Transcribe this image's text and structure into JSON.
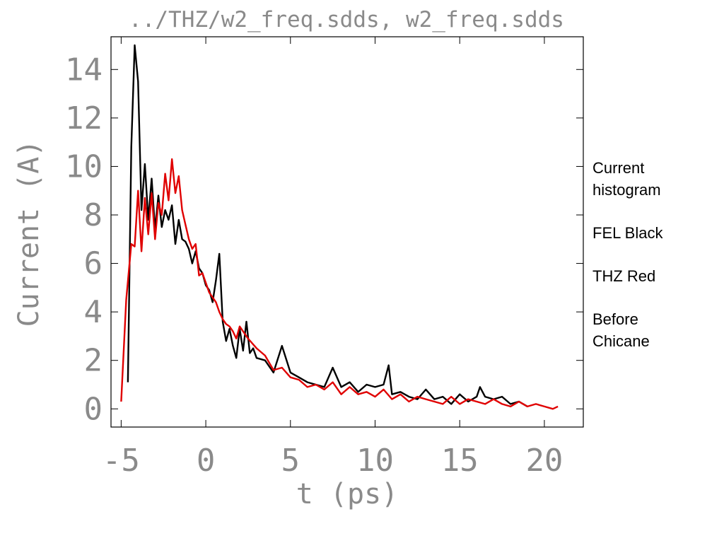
{
  "chart_data": {
    "type": "line",
    "title": "../THZ/w2_freq.sdds, w2_freq.sdds",
    "xlabel": "t (ps)",
    "ylabel": "Current (A)",
    "xlim": [
      -5.6,
      22.3
    ],
    "ylim": [
      -0.75,
      15.35
    ],
    "x_ticks": [
      -5,
      0,
      5,
      10,
      15,
      20
    ],
    "x_tick_labels": [
      "-5",
      "0",
      "5",
      "10",
      "15",
      "20"
    ],
    "y_ticks": [
      0,
      2,
      4,
      6,
      8,
      10,
      12,
      14
    ],
    "y_tick_labels": [
      "0",
      "2",
      "4",
      "6",
      "8",
      "10",
      "12",
      "14"
    ],
    "grid": false,
    "series": [
      {
        "color": "#000000",
        "x": [
          -4.6,
          -4.4,
          -4.2,
          -4.0,
          -3.8,
          -3.6,
          -3.4,
          -3.2,
          -3.0,
          -2.8,
          -2.6,
          -2.4,
          -2.2,
          -2.0,
          -1.8,
          -1.6,
          -1.4,
          -1.2,
          -1.0,
          -0.8,
          -0.6,
          -0.4,
          -0.2,
          0.0,
          0.2,
          0.4,
          0.6,
          0.8,
          1.0,
          1.2,
          1.4,
          1.6,
          1.8,
          2.0,
          2.2,
          2.4,
          2.6,
          2.8,
          3.0,
          3.5,
          4.0,
          4.5,
          5.0,
          5.5,
          6.0,
          6.5,
          7.0,
          7.5,
          8.0,
          8.5,
          9.0,
          9.5,
          10.0,
          10.5,
          10.8,
          11.0,
          11.5,
          12.0,
          12.5,
          13.0,
          13.5,
          14.0,
          14.5,
          15.0,
          15.5,
          16.0,
          16.2,
          16.5,
          17.0,
          17.5,
          18.0,
          18.5,
          19.0
        ],
        "values": [
          1.1,
          10.8,
          15.0,
          13.5,
          8.2,
          10.1,
          7.8,
          9.5,
          7.4,
          8.8,
          7.5,
          8.2,
          7.8,
          8.4,
          6.8,
          7.8,
          7.0,
          6.9,
          6.6,
          6.0,
          6.5,
          5.8,
          5.6,
          5.1,
          4.9,
          4.4,
          5.3,
          6.4,
          3.6,
          2.8,
          3.3,
          2.6,
          2.1,
          3.3,
          2.4,
          3.6,
          2.3,
          2.5,
          2.1,
          2.0,
          1.5,
          2.6,
          1.5,
          1.3,
          1.1,
          1.0,
          0.9,
          1.7,
          0.9,
          1.1,
          0.7,
          1.0,
          0.9,
          1.0,
          1.8,
          0.6,
          0.7,
          0.5,
          0.4,
          0.8,
          0.4,
          0.5,
          0.2,
          0.6,
          0.3,
          0.5,
          0.9,
          0.5,
          0.4,
          0.5,
          0.2,
          0.3,
          0.1
        ]
      },
      {
        "color": "#e00000",
        "x": [
          -5.0,
          -4.7,
          -4.4,
          -4.2,
          -4.0,
          -3.8,
          -3.6,
          -3.4,
          -3.2,
          -3.0,
          -2.8,
          -2.6,
          -2.4,
          -2.2,
          -2.0,
          -1.8,
          -1.6,
          -1.4,
          -1.2,
          -1.0,
          -0.8,
          -0.6,
          -0.4,
          -0.2,
          0.0,
          0.2,
          0.4,
          0.6,
          0.8,
          1.0,
          1.2,
          1.4,
          1.6,
          1.8,
          2.0,
          2.5,
          3.0,
          3.5,
          4.0,
          4.5,
          5.0,
          5.5,
          6.0,
          6.5,
          7.0,
          7.5,
          8.0,
          8.5,
          9.0,
          9.5,
          10.0,
          10.5,
          11.0,
          11.5,
          12.0,
          12.5,
          13.0,
          13.5,
          14.0,
          14.5,
          15.0,
          15.5,
          16.0,
          16.5,
          17.0,
          17.5,
          18.0,
          18.5,
          19.0,
          19.5,
          20.0,
          20.5,
          20.8
        ],
        "values": [
          0.3,
          4.5,
          6.8,
          6.7,
          9.0,
          6.5,
          8.7,
          7.2,
          8.9,
          7.0,
          8.5,
          8.0,
          9.7,
          8.6,
          10.3,
          8.9,
          9.6,
          8.2,
          7.6,
          7.0,
          6.6,
          6.8,
          5.5,
          5.6,
          5.2,
          4.8,
          4.6,
          4.4,
          4.0,
          3.7,
          3.5,
          3.4,
          3.2,
          2.9,
          3.4,
          2.9,
          2.5,
          2.2,
          1.6,
          1.7,
          1.3,
          1.2,
          0.9,
          1.0,
          0.8,
          1.1,
          0.6,
          0.9,
          0.6,
          0.7,
          0.5,
          0.8,
          0.4,
          0.6,
          0.3,
          0.5,
          0.4,
          0.3,
          0.2,
          0.5,
          0.2,
          0.4,
          0.3,
          0.2,
          0.4,
          0.2,
          0.1,
          0.3,
          0.1,
          0.2,
          0.1,
          0.0,
          0.1
        ]
      }
    ]
  },
  "notes": {
    "line1": "Current",
    "line2": "histogram",
    "line3": "FEL Black",
    "line4": "THZ Red",
    "line5": "Before",
    "line6": "Chicane"
  }
}
